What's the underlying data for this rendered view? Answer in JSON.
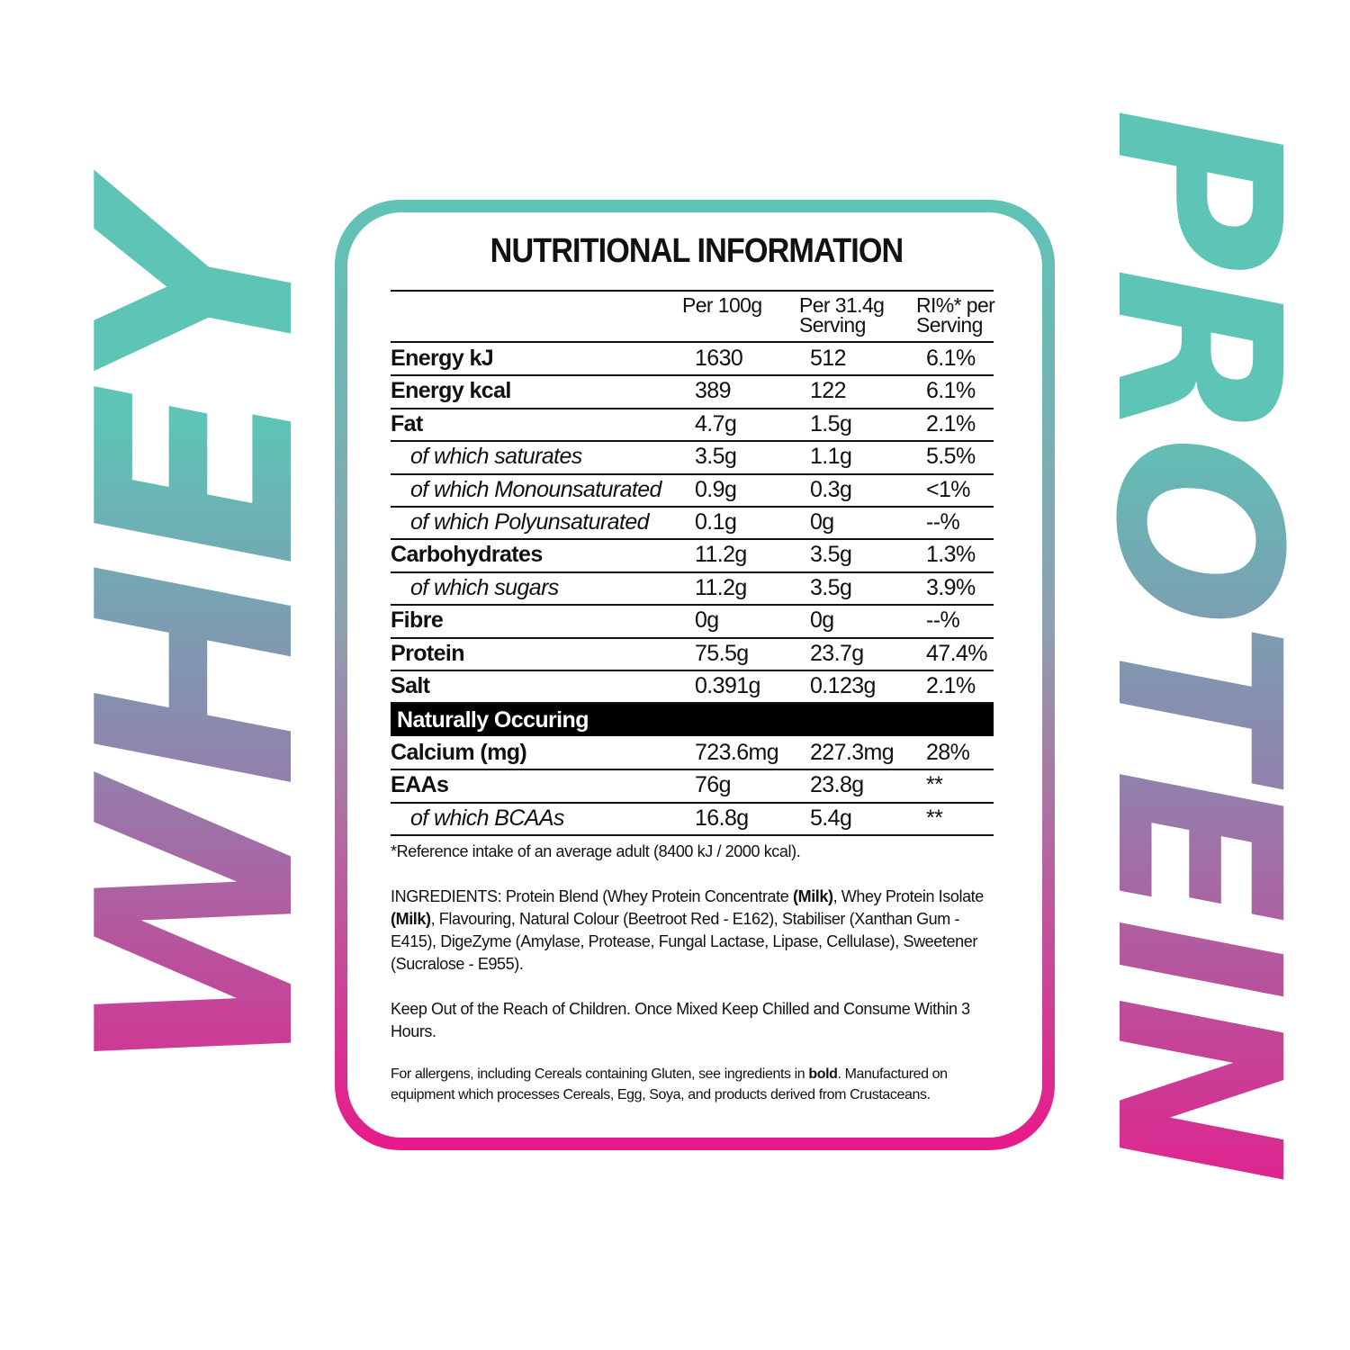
{
  "decor": {
    "left_word": "WHEY",
    "right_word": "PROTEIN",
    "gradient_colors": [
      "#5ec4b6",
      "#e8198b"
    ]
  },
  "title": "NUTRITIONAL INFORMATION",
  "headers": {
    "per100": "Per 100g",
    "serving_1": "Per 31.4g",
    "serving_2": "Serving",
    "ri_1": "RI%* per",
    "ri_2": "Serving"
  },
  "rows": [
    {
      "label": "Energy kJ",
      "style": "bold",
      "per100": "1630",
      "serving": "512",
      "ri": "6.1%"
    },
    {
      "label": "Energy kcal",
      "style": "bold",
      "per100": "389",
      "serving": "122",
      "ri": "6.1%"
    },
    {
      "label": "Fat",
      "style": "bold",
      "per100": "4.7g",
      "serving": "1.5g",
      "ri": "2.1%"
    },
    {
      "label": "of which saturates",
      "style": "ital",
      "per100": "3.5g",
      "serving": "1.1g",
      "ri": "5.5%"
    },
    {
      "label": "of which Monounsaturated",
      "style": "ital",
      "per100": "0.9g",
      "serving": "0.3g",
      "ri": "<1%"
    },
    {
      "label": "of which Polyunsaturated",
      "style": "ital",
      "per100": "0.1g",
      "serving": "0g",
      "ri": "--%"
    },
    {
      "label": "Carbohydrates",
      "style": "bold",
      "per100": "11.2g",
      "serving": "3.5g",
      "ri": "1.3%"
    },
    {
      "label": "of which sugars",
      "style": "ital",
      "per100": "11.2g",
      "serving": "3.5g",
      "ri": "3.9%"
    },
    {
      "label": "Fibre",
      "style": "bold",
      "per100": "0g",
      "serving": "0g",
      "ri": "--%"
    },
    {
      "label": "Protein",
      "style": "bold",
      "per100": "75.5g",
      "serving": "23.7g",
      "ri": "47.4%"
    },
    {
      "label": "Salt",
      "style": "bold",
      "per100": "0.391g",
      "serving": "0.123g",
      "ri": "2.1%"
    }
  ],
  "band": "Naturally Occuring",
  "rows2": [
    {
      "label": "Calcium (mg)",
      "style": "bold",
      "per100": "723.6mg",
      "serving": "227.3mg",
      "ri": "28%"
    },
    {
      "label": "EAAs",
      "style": "bold",
      "per100": "76g",
      "serving": "23.8g",
      "ri": "**"
    },
    {
      "label": "of which BCAAs",
      "style": "ital",
      "per100": "16.8g",
      "serving": "5.4g",
      "ri": "**"
    }
  ],
  "footnote": "*Reference intake of an average adult (8400 kJ / 2000 kcal).",
  "ingredients": {
    "p1": "INGREDIENTS: Protein Blend (Whey Protein Concentrate ",
    "b1": "(Milk)",
    "p2": ", Whey Protein Isolate ",
    "b2": "(Milk)",
    "p3": ", Flavouring, Natural Colour (Beetroot Red - E162), Stabiliser (Xanthan Gum - E415), DigeZyme (Amylase, Protease, Fungal Lactase, Lipase, Cellulase), Sweetener (Sucralose - E955)."
  },
  "warning": "Keep Out of the Reach of Children. Once Mixed Keep Chilled and Consume Within 3 Hours.",
  "allergens": {
    "p1": "For allergens, including Cereals containing Gluten, see ingredients in ",
    "b1": "bold",
    "p2": ". Manufactured on equipment which processes Cereals, Egg, Soya, and products derived from Crustaceans."
  }
}
